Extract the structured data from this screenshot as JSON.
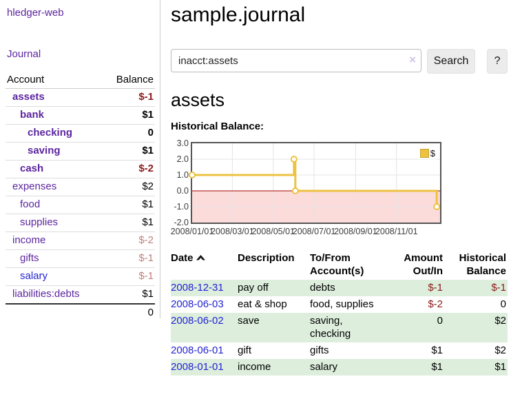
{
  "app": {
    "title": "hledger-web"
  },
  "sidebar": {
    "journal_link": "Journal",
    "table": {
      "account_header": "Account",
      "balance_header": "Balance",
      "total": "0"
    },
    "accounts": [
      {
        "name": "assets",
        "balance": "$-1"
      },
      {
        "name": "bank",
        "balance": "$1"
      },
      {
        "name": "checking",
        "balance": "0"
      },
      {
        "name": "saving",
        "balance": "$1"
      },
      {
        "name": "cash",
        "balance": "$-2"
      },
      {
        "name": "expenses",
        "balance": "$2"
      },
      {
        "name": "food",
        "balance": "$1"
      },
      {
        "name": "supplies",
        "balance": "$1"
      },
      {
        "name": "income",
        "balance": "$-2"
      },
      {
        "name": "gifts",
        "balance": "$-1"
      },
      {
        "name": "salary",
        "balance": "$-1"
      },
      {
        "name": "liabilities:debts",
        "balance": "$1"
      }
    ]
  },
  "main": {
    "title": "sample.journal",
    "search": {
      "value": "inacct:assets",
      "clear_icon": "×",
      "button": "Search",
      "help_button": "?"
    },
    "account_heading": "assets",
    "chart_label": "Historical Balance:"
  },
  "chart_data": {
    "type": "line",
    "step": true,
    "title": "Historical Balance:",
    "series": [
      {
        "name": "$",
        "color": "#edc240",
        "points": [
          [
            "2008-01-01",
            1
          ],
          [
            "2008-06-01",
            2
          ],
          [
            "2008-06-03",
            0
          ],
          [
            "2008-12-31",
            -1
          ]
        ]
      }
    ],
    "xlim": [
      "2008-01-01",
      "2009-01-05"
    ],
    "ylim": [
      -2,
      3
    ],
    "yticks": [
      "3.0",
      "2.0",
      "1.0",
      "0.0",
      "-1.0",
      "-2.0"
    ],
    "xticks": [
      "2008/01/01",
      "2008/03/01",
      "2008/05/01",
      "2008/07/01",
      "2008/09/01",
      "2008/11/01"
    ],
    "legend_position": "top-right",
    "grid": true,
    "grid_color": "#e4e4e4",
    "negative_region_fill": "#fcdbdb",
    "zero_line_color": "#a40000",
    "plot_border_color": "#545454"
  },
  "register": {
    "headers": {
      "date": "Date",
      "description": "Description",
      "accounts": "To/From Account(s)",
      "amount": "Amount Out/In",
      "balance": "Historical Balance"
    },
    "rows": [
      {
        "date": "2008-12-31",
        "description": "pay off",
        "accounts": "debts",
        "amount": "$-1",
        "balance": "$-1"
      },
      {
        "date": "2008-06-03",
        "description": "eat & shop",
        "accounts": "food, supplies",
        "amount": "$-2",
        "balance": "0"
      },
      {
        "date": "2008-06-02",
        "description": "save",
        "accounts": "saving, checking",
        "amount": "0",
        "balance": "$2"
      },
      {
        "date": "2008-06-01",
        "description": "gift",
        "accounts": "gifts",
        "amount": "$1",
        "balance": "$2"
      },
      {
        "date": "2008-01-01",
        "description": "income",
        "accounts": "salary",
        "amount": "$1",
        "balance": "$1"
      }
    ]
  }
}
